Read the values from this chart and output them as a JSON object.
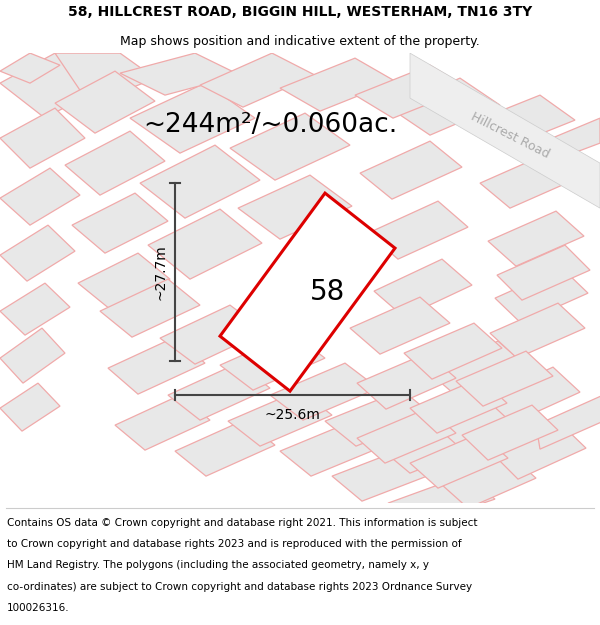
{
  "title_line1": "58, HILLCREST ROAD, BIGGIN HILL, WESTERHAM, TN16 3TY",
  "title_line2": "Map shows position and indicative extent of the property.",
  "area_text": "~244m²/~0.060ac.",
  "dim_width": "~25.6m",
  "dim_height": "~27.7m",
  "property_number": "58",
  "road_label": "Hillcrest Road",
  "footer_lines": [
    "Contains OS data © Crown copyright and database right 2021. This information is subject",
    "to Crown copyright and database rights 2023 and is reproduced with the permission of",
    "HM Land Registry. The polygons (including the associated geometry, namely x, y",
    "co-ordinates) are subject to Crown copyright and database rights 2023 Ordnance Survey",
    "100026316."
  ],
  "bg_color": "#ffffff",
  "map_bg": "#f7f7f7",
  "property_fill": "#ffffff",
  "property_edge": "#dd0000",
  "building_fill": "#e8e8e8",
  "building_edge": "#f0aaaa",
  "dim_color": "#444444",
  "road_label_color": "#aaaaaa",
  "title_fontsize": 10,
  "subtitle_fontsize": 9,
  "area_fontsize": 19,
  "property_num_fontsize": 20,
  "road_label_fontsize": 9,
  "dim_fontsize": 10,
  "footer_fontsize": 7.5
}
